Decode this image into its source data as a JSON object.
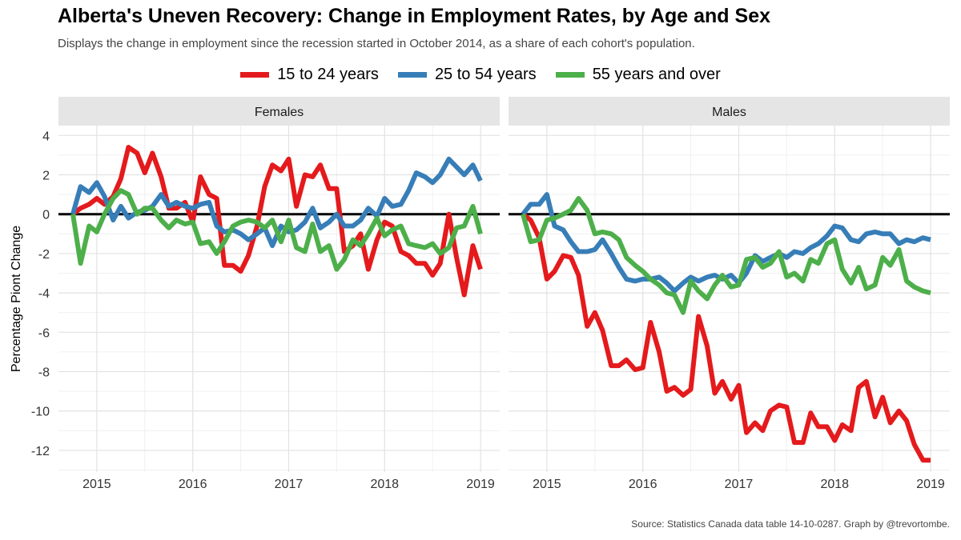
{
  "title": "Alberta's Uneven Recovery: Change in Employment Rates, by Age and Sex",
  "subtitle": "Displays the change in employment since the recession started in October 2014, as a share of each cohort's population.",
  "caption": "Source: Statistics Canada data table 14-10-0287. Graph by @trevortombe.",
  "legend": [
    {
      "label": "15 to 24 years",
      "color": "#e41a1c"
    },
    {
      "label": "25 to 54 years",
      "color": "#377eb8"
    },
    {
      "label": "55 years and over",
      "color": "#4daf4a"
    }
  ],
  "chart_data": {
    "type": "line",
    "ylabel": "Percentage Piont Change",
    "xlabel": "",
    "ylim": [
      -13.1,
      4.5
    ],
    "xlim": [
      2014.6,
      2019.2
    ],
    "yticks": [
      4,
      2,
      0,
      -2,
      -4,
      -6,
      -8,
      -10,
      -12
    ],
    "xticks": [
      2015,
      2016,
      2017,
      2018,
      2019
    ],
    "grid": true,
    "legend_position": "top",
    "zero_line": true,
    "facets": [
      {
        "name": "Females",
        "series": [
          {
            "name": "15 to 24 years",
            "color": "#e41a1c",
            "x": [
              2014.75,
              2014.83,
              2014.92,
              2015.0,
              2015.08,
              2015.17,
              2015.25,
              2015.33,
              2015.42,
              2015.5,
              2015.58,
              2015.67,
              2015.75,
              2015.83,
              2015.92,
              2016.0,
              2016.08,
              2016.17,
              2016.25,
              2016.33,
              2016.42,
              2016.5,
              2016.58,
              2016.67,
              2016.75,
              2016.83,
              2016.92,
              2017.0,
              2017.08,
              2017.17,
              2017.25,
              2017.33,
              2017.42,
              2017.5,
              2017.58,
              2017.67,
              2017.75,
              2017.83,
              2017.92,
              2018.0,
              2018.08,
              2018.17,
              2018.25,
              2018.33,
              2018.42,
              2018.5,
              2018.58,
              2018.67,
              2018.75,
              2018.83,
              2018.92,
              2019.0
            ],
            "y": [
              0,
              0.3,
              0.5,
              0.8,
              0.5,
              0.9,
              1.8,
              3.4,
              3.1,
              2.1,
              3.1,
              1.9,
              0.3,
              0.3,
              0.6,
              -0.4,
              1.9,
              1.0,
              0.8,
              -2.6,
              -2.6,
              -2.9,
              -2.1,
              -0.6,
              1.4,
              2.5,
              2.2,
              2.8,
              0.4,
              2.0,
              1.9,
              2.5,
              1.3,
              1.3,
              -1.9,
              -1.6,
              -1.0,
              -2.8,
              -1.3,
              -0.4,
              -0.6,
              -1.9,
              -2.1,
              -2.5,
              -2.5,
              -3.1,
              -2.5,
              0.0,
              -2.2,
              -4.1,
              -1.6,
              -2.8
            ]
          },
          {
            "name": "25 to 54 years",
            "color": "#377eb8",
            "x": [
              2014.75,
              2014.83,
              2014.92,
              2015.0,
              2015.08,
              2015.17,
              2015.25,
              2015.33,
              2015.42,
              2015.5,
              2015.58,
              2015.67,
              2015.75,
              2015.83,
              2015.92,
              2016.0,
              2016.08,
              2016.17,
              2016.25,
              2016.33,
              2016.42,
              2016.5,
              2016.58,
              2016.67,
              2016.75,
              2016.83,
              2016.92,
              2017.0,
              2017.08,
              2017.17,
              2017.25,
              2017.33,
              2017.42,
              2017.5,
              2017.58,
              2017.67,
              2017.75,
              2017.83,
              2017.92,
              2018.0,
              2018.08,
              2018.17,
              2018.25,
              2018.33,
              2018.42,
              2018.5,
              2018.58,
              2018.67,
              2018.75,
              2018.83,
              2018.92,
              2019.0
            ],
            "y": [
              0,
              1.4,
              1.1,
              1.6,
              0.9,
              -0.3,
              0.4,
              -0.2,
              0.1,
              0.2,
              0.4,
              1.0,
              0.4,
              0.6,
              0.4,
              0.3,
              0.5,
              0.6,
              -0.6,
              -0.9,
              -0.8,
              -1.0,
              -1.3,
              -1.0,
              -0.7,
              -1.6,
              -0.6,
              -0.9,
              -0.8,
              -0.4,
              0.3,
              -0.7,
              -0.4,
              0.0,
              -0.6,
              -0.6,
              -0.3,
              0.3,
              -0.1,
              0.8,
              0.4,
              0.5,
              1.2,
              2.1,
              1.9,
              1.6,
              2.0,
              2.8,
              2.4,
              2.0,
              2.5,
              1.7
            ]
          },
          {
            "name": "55 years and over",
            "color": "#4daf4a",
            "x": [
              2014.75,
              2014.83,
              2014.92,
              2015.0,
              2015.08,
              2015.17,
              2015.25,
              2015.33,
              2015.42,
              2015.5,
              2015.58,
              2015.67,
              2015.75,
              2015.83,
              2015.92,
              2016.0,
              2016.08,
              2016.17,
              2016.25,
              2016.33,
              2016.42,
              2016.5,
              2016.58,
              2016.67,
              2016.75,
              2016.83,
              2016.92,
              2017.0,
              2017.08,
              2017.17,
              2017.25,
              2017.33,
              2017.42,
              2017.5,
              2017.58,
              2017.67,
              2017.75,
              2017.83,
              2017.92,
              2018.0,
              2018.08,
              2018.17,
              2018.25,
              2018.33,
              2018.42,
              2018.5,
              2018.58,
              2018.67,
              2018.75,
              2018.83,
              2018.92,
              2019.0
            ],
            "y": [
              0,
              -2.5,
              -0.6,
              -0.9,
              0.0,
              0.8,
              1.2,
              1.0,
              0.0,
              0.3,
              0.3,
              -0.3,
              -0.7,
              -0.3,
              -0.5,
              -0.4,
              -1.5,
              -1.4,
              -2.0,
              -1.4,
              -0.6,
              -0.4,
              -0.3,
              -0.4,
              -0.7,
              -0.3,
              -1.4,
              -0.3,
              -1.7,
              -1.9,
              -0.5,
              -1.9,
              -1.6,
              -2.8,
              -2.3,
              -1.3,
              -1.6,
              -1.0,
              -0.2,
              -1.1,
              -0.8,
              -0.6,
              -1.5,
              -1.6,
              -1.7,
              -1.5,
              -2.0,
              -1.7,
              -0.7,
              -0.6,
              0.4,
              -1.0
            ]
          }
        ]
      },
      {
        "name": "Males",
        "series": [
          {
            "name": "15 to 24 years",
            "color": "#e41a1c",
            "x": [
              2014.75,
              2014.83,
              2014.92,
              2015.0,
              2015.08,
              2015.17,
              2015.25,
              2015.33,
              2015.42,
              2015.5,
              2015.58,
              2015.67,
              2015.75,
              2015.83,
              2015.92,
              2016.0,
              2016.08,
              2016.17,
              2016.25,
              2016.33,
              2016.42,
              2016.5,
              2016.58,
              2016.67,
              2016.75,
              2016.83,
              2016.92,
              2017.0,
              2017.08,
              2017.17,
              2017.25,
              2017.33,
              2017.42,
              2017.5,
              2017.58,
              2017.67,
              2017.75,
              2017.83,
              2017.92,
              2018.0,
              2018.08,
              2018.17,
              2018.25,
              2018.33,
              2018.42,
              2018.5,
              2018.58,
              2018.67,
              2018.75,
              2018.83,
              2018.92,
              2019.0
            ],
            "y": [
              0,
              -0.3,
              -1.2,
              -3.3,
              -2.9,
              -2.1,
              -2.2,
              -3.1,
              -5.7,
              -5.0,
              -5.9,
              -7.7,
              -7.7,
              -7.4,
              -7.9,
              -7.8,
              -5.5,
              -7.0,
              -9.0,
              -8.8,
              -9.2,
              -8.9,
              -5.2,
              -6.7,
              -9.1,
              -8.5,
              -9.4,
              -8.7,
              -11.1,
              -10.6,
              -11.0,
              -10.0,
              -9.7,
              -9.8,
              -11.6,
              -11.6,
              -10.1,
              -10.8,
              -10.8,
              -11.5,
              -10.7,
              -11.0,
              -8.8,
              -8.5,
              -10.3,
              -9.3,
              -10.6,
              -10.0,
              -10.5,
              -11.7,
              -12.5,
              -12.5
            ]
          },
          {
            "name": "25 to 54 years",
            "color": "#377eb8",
            "x": [
              2014.75,
              2014.83,
              2014.92,
              2015.0,
              2015.08,
              2015.17,
              2015.25,
              2015.33,
              2015.42,
              2015.5,
              2015.58,
              2015.67,
              2015.75,
              2015.83,
              2015.92,
              2016.0,
              2016.08,
              2016.17,
              2016.25,
              2016.33,
              2016.42,
              2016.5,
              2016.58,
              2016.67,
              2016.75,
              2016.83,
              2016.92,
              2017.0,
              2017.08,
              2017.17,
              2017.25,
              2017.33,
              2017.42,
              2017.5,
              2017.58,
              2017.67,
              2017.75,
              2017.83,
              2017.92,
              2018.0,
              2018.08,
              2018.17,
              2018.25,
              2018.33,
              2018.42,
              2018.5,
              2018.58,
              2018.67,
              2018.75,
              2018.83,
              2018.92,
              2019.0
            ],
            "y": [
              0,
              0.5,
              0.5,
              1.0,
              -0.6,
              -0.8,
              -1.4,
              -1.9,
              -1.9,
              -1.8,
              -1.3,
              -2.0,
              -2.7,
              -3.3,
              -3.4,
              -3.3,
              -3.3,
              -3.2,
              -3.5,
              -3.9,
              -3.5,
              -3.2,
              -3.4,
              -3.2,
              -3.1,
              -3.3,
              -3.1,
              -3.5,
              -3.0,
              -2.1,
              -2.4,
              -2.2,
              -2.0,
              -2.2,
              -1.9,
              -2.0,
              -1.7,
              -1.5,
              -1.1,
              -0.6,
              -0.7,
              -1.3,
              -1.4,
              -1.0,
              -0.9,
              -1.0,
              -1.0,
              -1.5,
              -1.3,
              -1.4,
              -1.2,
              -1.3
            ]
          },
          {
            "name": "55 years and over",
            "color": "#4daf4a",
            "x": [
              2014.75,
              2014.83,
              2014.92,
              2015.0,
              2015.08,
              2015.17,
              2015.25,
              2015.33,
              2015.42,
              2015.5,
              2015.58,
              2015.67,
              2015.75,
              2015.83,
              2015.92,
              2016.0,
              2016.08,
              2016.17,
              2016.25,
              2016.33,
              2016.42,
              2016.5,
              2016.58,
              2016.67,
              2016.75,
              2016.83,
              2016.92,
              2017.0,
              2017.08,
              2017.17,
              2017.25,
              2017.33,
              2017.42,
              2017.5,
              2017.58,
              2017.67,
              2017.75,
              2017.83,
              2017.92,
              2018.0,
              2018.08,
              2018.17,
              2018.25,
              2018.33,
              2018.42,
              2018.5,
              2018.58,
              2018.67,
              2018.75,
              2018.83,
              2018.92,
              2019.0
            ],
            "y": [
              0,
              -1.4,
              -1.3,
              -0.3,
              -0.2,
              0.0,
              0.2,
              0.8,
              0.2,
              -1.0,
              -0.9,
              -1.0,
              -1.3,
              -2.2,
              -2.6,
              -2.9,
              -3.3,
              -3.6,
              -4.0,
              -4.1,
              -5.0,
              -3.4,
              -3.9,
              -4.3,
              -3.6,
              -3.1,
              -3.7,
              -3.6,
              -2.3,
              -2.2,
              -2.7,
              -2.5,
              -1.9,
              -3.2,
              -3.0,
              -3.4,
              -2.3,
              -2.5,
              -1.5,
              -1.3,
              -2.8,
              -3.5,
              -2.7,
              -3.8,
              -3.6,
              -2.2,
              -2.6,
              -1.8,
              -3.4,
              -3.7,
              -3.9,
              -4.0
            ]
          }
        ]
      }
    ]
  }
}
